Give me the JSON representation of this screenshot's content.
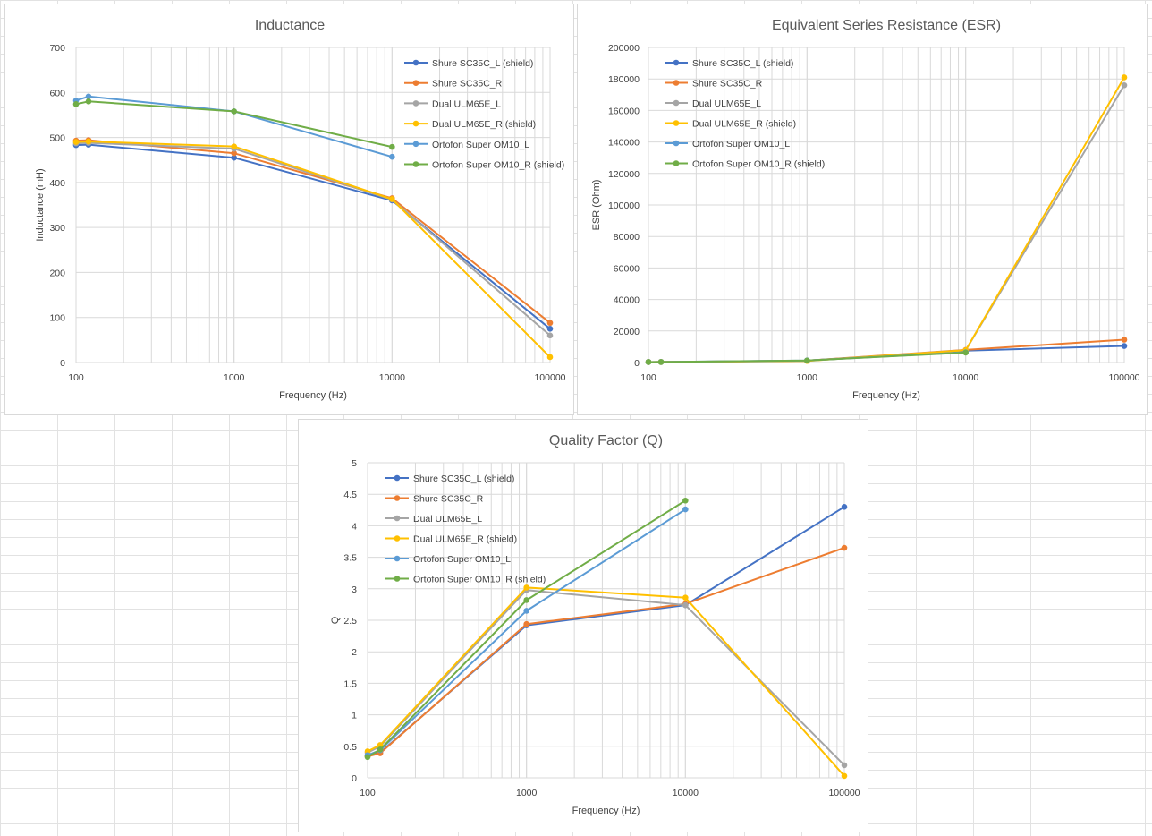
{
  "chart_data": [
    {
      "type": "line",
      "title": "Inductance",
      "xlabel": "Frequency (Hz)",
      "ylabel": "Inductance (mH)",
      "x_scale": "log",
      "xlim": [
        100,
        100000
      ],
      "ylim": [
        0,
        700
      ],
      "y_step": 100,
      "x_ticks": [
        100,
        1000,
        10000,
        100000
      ],
      "grid": true,
      "legend_position": "top-right",
      "series": [
        {
          "name": "Shure SC35C_L (shield)",
          "color": "#4472C4",
          "x": [
            100,
            120,
            1000,
            10000,
            100000
          ],
          "y": [
            483,
            484,
            455,
            360,
            75
          ]
        },
        {
          "name": "Shure SC35C_R",
          "color": "#ED7D31",
          "x": [
            100,
            120,
            1000,
            10000,
            100000
          ],
          "y": [
            493,
            494,
            465,
            365,
            88
          ]
        },
        {
          "name": "Dual ULM65E_L",
          "color": "#A5A5A5",
          "x": [
            100,
            120,
            1000,
            10000,
            100000
          ],
          "y": [
            487,
            488,
            475,
            362,
            60
          ]
        },
        {
          "name": "Dual ULM65E_R (shield)",
          "color": "#FFC000",
          "x": [
            100,
            120,
            1000,
            10000,
            100000
          ],
          "y": [
            490,
            491,
            480,
            363,
            12
          ]
        },
        {
          "name": "Ortofon Super OM10_L",
          "color": "#5B9BD5",
          "x": [
            100,
            120,
            1000,
            10000
          ],
          "y": [
            582,
            591,
            558,
            457
          ]
        },
        {
          "name": "Ortofon Super OM10_R (shield)",
          "color": "#70AD47",
          "x": [
            100,
            120,
            1000,
            10000
          ],
          "y": [
            574,
            580,
            558,
            479
          ]
        }
      ]
    },
    {
      "type": "line",
      "title": "Equivalent Series Resistance (ESR)",
      "xlabel": "Frequency (Hz)",
      "ylabel": "ESR (Ohm)",
      "x_scale": "log",
      "xlim": [
        100,
        100000
      ],
      "ylim": [
        0,
        200000
      ],
      "y_step": 20000,
      "x_ticks": [
        100,
        1000,
        10000,
        100000
      ],
      "grid": true,
      "legend_position": "top-left",
      "series": [
        {
          "name": "Shure SC35C_L (shield)",
          "color": "#4472C4",
          "x": [
            100,
            120,
            1000,
            10000,
            100000
          ],
          "y": [
            300,
            350,
            1200,
            7500,
            10500
          ]
        },
        {
          "name": "Shure SC35C_R",
          "color": "#ED7D31",
          "x": [
            100,
            120,
            1000,
            10000,
            100000
          ],
          "y": [
            300,
            350,
            1200,
            8000,
            14500
          ]
        },
        {
          "name": "Dual ULM65E_L",
          "color": "#A5A5A5",
          "x": [
            100,
            120,
            1000,
            10000,
            100000
          ],
          "y": [
            300,
            350,
            1100,
            7800,
            176000
          ]
        },
        {
          "name": "Dual ULM65E_R (shield)",
          "color": "#FFC000",
          "x": [
            100,
            120,
            1000,
            10000,
            100000
          ],
          "y": [
            300,
            350,
            1000,
            7800,
            181000
          ]
        },
        {
          "name": "Ortofon Super OM10_L",
          "color": "#5B9BD5",
          "x": [
            100,
            120,
            1000,
            10000
          ],
          "y": [
            300,
            350,
            1300,
            6500
          ]
        },
        {
          "name": "Ortofon Super OM10_R (shield)",
          "color": "#70AD47",
          "x": [
            100,
            120,
            1000,
            10000
          ],
          "y": [
            300,
            350,
            1250,
            6300
          ]
        }
      ]
    },
    {
      "type": "line",
      "title": "Quality Factor (Q)",
      "xlabel": "Frequency (Hz)",
      "ylabel": "Q",
      "x_scale": "log",
      "xlim": [
        100,
        100000
      ],
      "ylim": [
        0,
        5
      ],
      "y_step": 0.5,
      "x_ticks": [
        100,
        1000,
        10000,
        100000
      ],
      "grid": true,
      "legend_position": "top-left",
      "series": [
        {
          "name": "Shure SC35C_L (shield)",
          "color": "#4472C4",
          "x": [
            100,
            120,
            1000,
            10000,
            100000
          ],
          "y": [
            0.35,
            0.4,
            2.42,
            2.74,
            4.3
          ]
        },
        {
          "name": "Shure SC35C_R",
          "color": "#ED7D31",
          "x": [
            100,
            120,
            1000,
            10000,
            100000
          ],
          "y": [
            0.34,
            0.39,
            2.44,
            2.76,
            3.65
          ]
        },
        {
          "name": "Dual ULM65E_L",
          "color": "#A5A5A5",
          "x": [
            100,
            120,
            1000,
            10000,
            100000
          ],
          "y": [
            0.4,
            0.5,
            2.98,
            2.74,
            0.2
          ]
        },
        {
          "name": "Dual ULM65E_R (shield)",
          "color": "#FFC000",
          "x": [
            100,
            120,
            1000,
            10000,
            100000
          ],
          "y": [
            0.42,
            0.52,
            3.02,
            2.86,
            0.03
          ]
        },
        {
          "name": "Ortofon Super OM10_L",
          "color": "#5B9BD5",
          "x": [
            100,
            120,
            1000,
            10000
          ],
          "y": [
            0.36,
            0.44,
            2.65,
            4.26
          ]
        },
        {
          "name": "Ortofon Super OM10_R (shield)",
          "color": "#70AD47",
          "x": [
            100,
            120,
            1000,
            10000
          ],
          "y": [
            0.33,
            0.45,
            2.82,
            4.4
          ]
        }
      ]
    }
  ]
}
